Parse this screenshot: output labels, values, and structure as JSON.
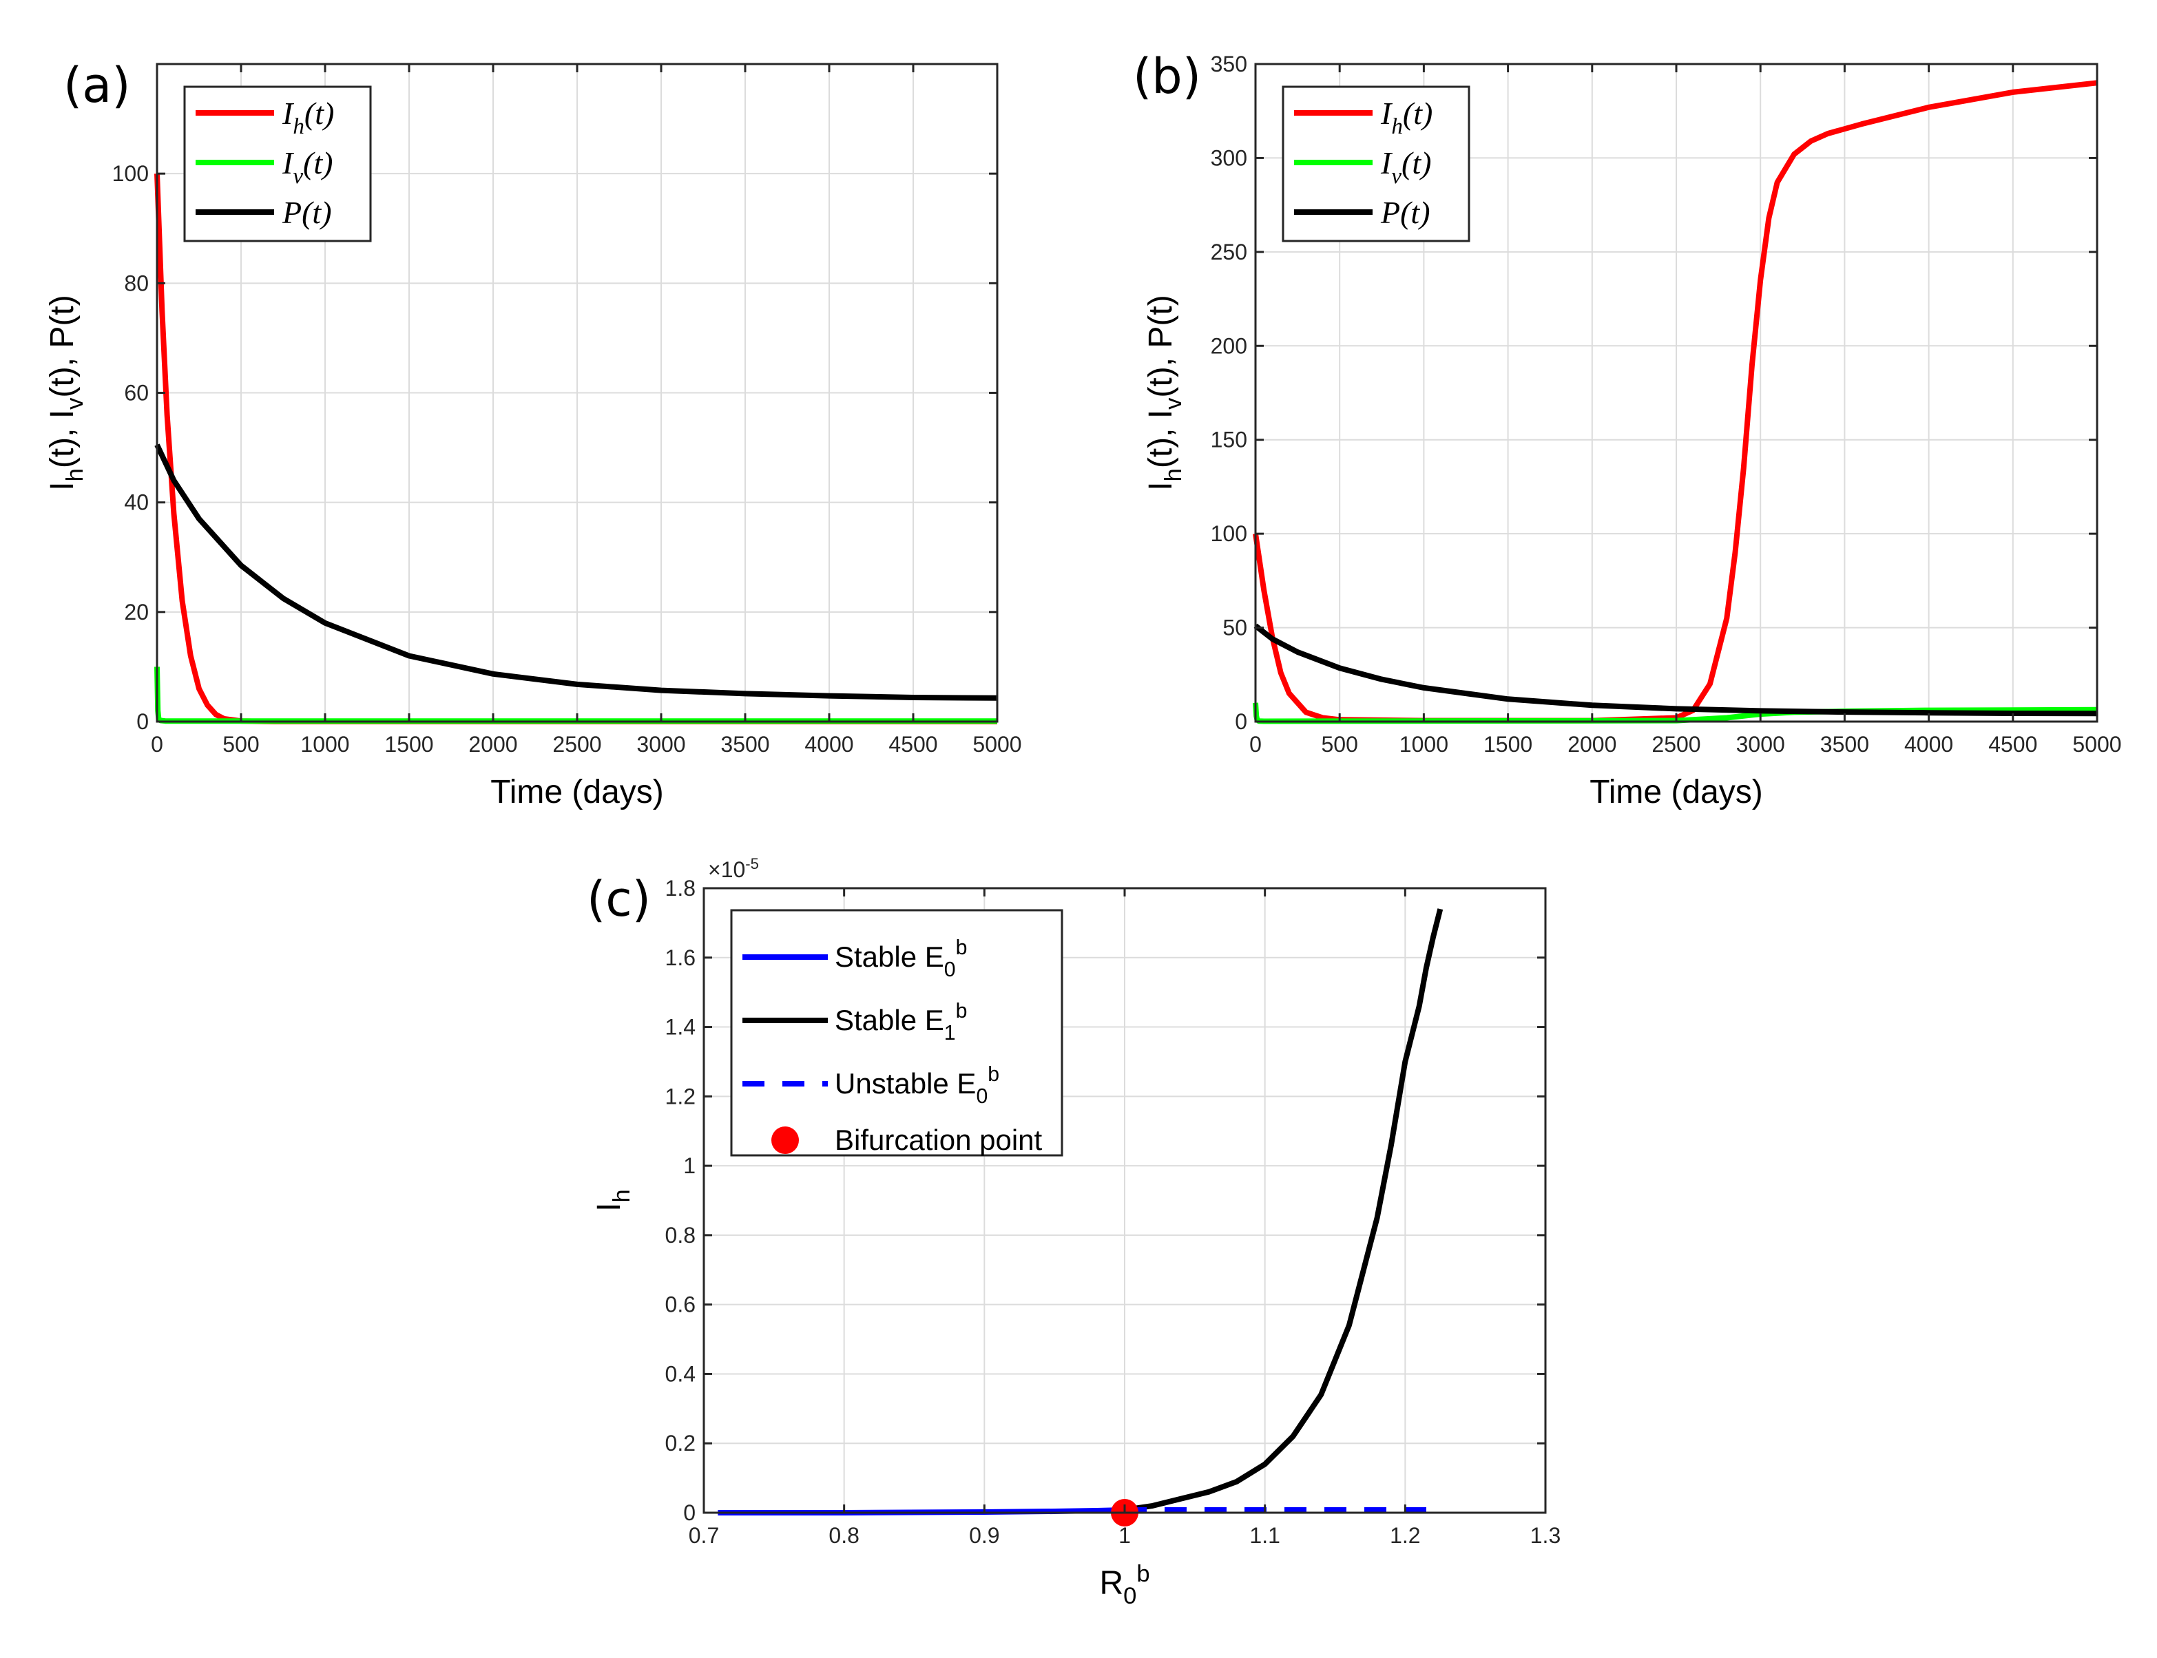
{
  "chart_data": [
    {
      "id": "a",
      "type": "line",
      "panel_label": "(a)",
      "xlabel": "Time (days)",
      "ylabel": "I_h(t), I_v(t), P(t)",
      "xlim": [
        0,
        5000
      ],
      "ylim": [
        0,
        120
      ],
      "xticks": [
        0,
        500,
        1000,
        1500,
        2000,
        2500,
        3000,
        3500,
        4000,
        4500,
        5000
      ],
      "yticks": [
        0,
        20,
        40,
        60,
        80,
        100
      ],
      "legend_position": "top-left",
      "series": [
        {
          "name": "I_h(t)",
          "color": "#ff0000",
          "x": [
            0,
            30,
            60,
            100,
            150,
            200,
            250,
            300,
            350,
            400,
            500,
            700,
            1000,
            2000,
            3000,
            4000,
            5000
          ],
          "y": [
            100,
            75,
            56,
            38,
            22,
            12,
            6,
            3,
            1.3,
            0.5,
            0.1,
            0,
            0,
            0,
            0,
            0,
            0
          ]
        },
        {
          "name": "I_v(t)",
          "color": "#00ff00",
          "x": [
            0,
            5,
            10,
            20,
            50,
            5000
          ],
          "y": [
            10,
            2,
            0.5,
            0.2,
            0.1,
            0.1
          ]
        },
        {
          "name": "P(t)",
          "color": "#000000",
          "x": [
            0,
            100,
            250,
            500,
            750,
            1000,
            1500,
            2000,
            2500,
            3000,
            3500,
            4000,
            4500,
            5000
          ],
          "y": [
            50.5,
            44,
            37,
            28.5,
            22.5,
            18,
            12,
            8.7,
            6.8,
            5.7,
            5.1,
            4.7,
            4.4,
            4.3
          ]
        }
      ]
    },
    {
      "id": "b",
      "type": "line",
      "panel_label": "(b)",
      "xlabel": "Time (days)",
      "ylabel": "I_h(t), I_v(t), P(t)",
      "xlim": [
        0,
        5000
      ],
      "ylim": [
        0,
        350
      ],
      "xticks": [
        0,
        500,
        1000,
        1500,
        2000,
        2500,
        3000,
        3500,
        4000,
        4500,
        5000
      ],
      "yticks": [
        0,
        50,
        100,
        150,
        200,
        250,
        300,
        350
      ],
      "legend_position": "top-left",
      "series": [
        {
          "name": "I_h(t)",
          "color": "#ff0000",
          "x": [
            0,
            50,
            100,
            150,
            200,
            300,
            400,
            500,
            1000,
            2000,
            2500,
            2600,
            2700,
            2800,
            2850,
            2900,
            2950,
            3000,
            3050,
            3100,
            3200,
            3300,
            3400,
            3600,
            4000,
            4500,
            5000
          ],
          "y": [
            100,
            70,
            45,
            26,
            15,
            5,
            2,
            1,
            0.5,
            0.5,
            2,
            6,
            20,
            55,
            90,
            135,
            190,
            235,
            268,
            287,
            302,
            309,
            313,
            318,
            327,
            335,
            340
          ]
        },
        {
          "name": "I_v(t)",
          "color": "#00ff00",
          "x": [
            0,
            5,
            10,
            20,
            50,
            2500,
            2800,
            3000,
            3200,
            3500,
            4000,
            5000
          ],
          "y": [
            10,
            3,
            1,
            0.3,
            0.2,
            0.5,
            2,
            4,
            5,
            5.5,
            6,
            6.3
          ]
        },
        {
          "name": "P(t)",
          "color": "#000000",
          "x": [
            0,
            100,
            250,
            500,
            750,
            1000,
            1500,
            2000,
            2500,
            3000,
            3500,
            4000,
            4500,
            5000
          ],
          "y": [
            51,
            44,
            37,
            28.5,
            22.5,
            18,
            12,
            8.7,
            6.8,
            5.7,
            5.1,
            4.7,
            4.4,
            4.3
          ]
        }
      ]
    },
    {
      "id": "c",
      "type": "line",
      "panel_label": "(c)",
      "xlabel": "R_0^b",
      "ylabel": "I_h",
      "xlim": [
        0.7,
        1.3
      ],
      "ylim": [
        0,
        1.8
      ],
      "y_multiplier": "×10^-5",
      "xticks": [
        0.7,
        0.8,
        0.9,
        1,
        1.1,
        1.2,
        1.3
      ],
      "xticklabels": [
        "0.7",
        "0.8",
        "0.9",
        "1",
        "1.1",
        "1.2",
        "1.3"
      ],
      "yticks": [
        0,
        0.2,
        0.4,
        0.6,
        0.8,
        1,
        1.2,
        1.4,
        1.6,
        1.8
      ],
      "yticklabels": [
        "0",
        "0.2",
        "0.4",
        "0.6",
        "0.8",
        "1",
        "1.2",
        "1.4",
        "1.6",
        "1.8"
      ],
      "legend_position": "top-left",
      "series": [
        {
          "name": "Stable E_0^b",
          "color": "#0000ff",
          "style": "solid",
          "x": [
            0.71,
            0.8,
            0.9,
            0.95,
            0.98,
            1.0
          ],
          "y": [
            0,
            0,
            0.002,
            0.004,
            0.006,
            0.008
          ]
        },
        {
          "name": "Stable E_1^b",
          "color": "#000000",
          "style": "solid",
          "x": [
            1.0,
            1.02,
            1.04,
            1.06,
            1.08,
            1.1,
            1.12,
            1.14,
            1.16,
            1.18,
            1.19,
            1.2,
            1.21,
            1.215,
            1.22,
            1.225
          ],
          "y": [
            0.008,
            0.02,
            0.04,
            0.06,
            0.09,
            0.14,
            0.22,
            0.34,
            0.54,
            0.85,
            1.06,
            1.3,
            1.46,
            1.57,
            1.66,
            1.74
          ]
        },
        {
          "name": "Unstable E_0^b",
          "color": "#0000ff",
          "style": "dashed",
          "x": [
            1.0,
            1.22
          ],
          "y": [
            0.008,
            0.008
          ]
        },
        {
          "name": "Bifurcation point",
          "color": "#ff0000",
          "style": "marker",
          "x": [
            1.0
          ],
          "y": [
            0
          ]
        }
      ]
    }
  ],
  "legend_labels": {
    "a": [
      "I_h(t)",
      "I_v(t)",
      "P(t)"
    ],
    "b": [
      "I_h(t)",
      "I_v(t)",
      "P(t)"
    ],
    "c": [
      "Stable E_0^b",
      "Stable E_1^b",
      "Unstable E_0^b",
      "Bifurcation point"
    ]
  }
}
